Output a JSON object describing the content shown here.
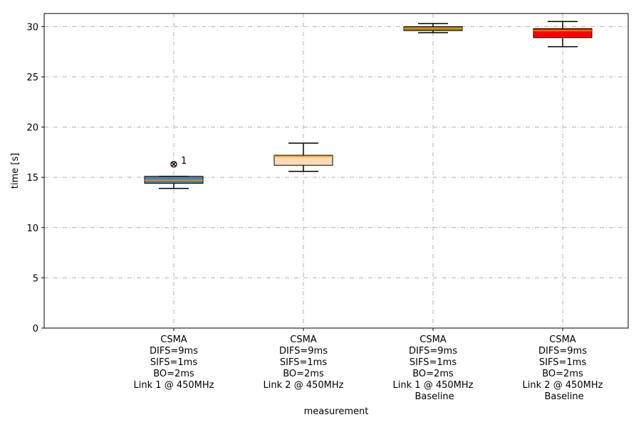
{
  "chart_data": {
    "type": "box",
    "xlabel": "measurement",
    "ylabel": "time [s]",
    "ylim": [
      0,
      31.3
    ],
    "yticks": [
      0,
      5,
      10,
      15,
      20,
      25,
      30
    ],
    "grid": true,
    "grid_style": "dash-dot",
    "categories": [
      [
        "CSMA",
        "DIFS=9ms",
        "SIFS=1ms",
        "BO=2ms",
        "Link 1 @ 450MHz"
      ],
      [
        "CSMA",
        "DIFS=9ms",
        "SIFS=1ms",
        "BO=2ms",
        "Link 2 @ 450MHz"
      ],
      [
        "CSMA",
        "DIFS=9ms",
        "SIFS=1ms",
        "BO=2ms",
        "Link 1 @ 450MHz",
        " Baseline"
      ],
      [
        "CSMA",
        "DIFS=9ms",
        "SIFS=1ms",
        "BO=2ms",
        "Link 2 @ 450MHz",
        " Baseline"
      ]
    ],
    "boxes": [
      {
        "whislo": 13.9,
        "q1": 14.4,
        "med": 14.7,
        "q3": 15.1,
        "whishi": 15.1,
        "fill": "#4682b4",
        "median_color": "#ff8c00",
        "fliers": [
          {
            "y": 16.3,
            "label": "1"
          }
        ]
      },
      {
        "whislo": 15.6,
        "q1": 16.2,
        "med": 17.1,
        "q3": 17.2,
        "whishi": 18.4,
        "fill": "#ffdab9",
        "median_color": "#ff8c00",
        "fliers": []
      },
      {
        "whislo": 29.4,
        "q1": 29.6,
        "med": 29.8,
        "q3": 30.0,
        "whishi": 30.3,
        "fill": "#6b8e23",
        "median_color": "#ff8c00",
        "fliers": []
      },
      {
        "whislo": 28.0,
        "q1": 28.9,
        "med": 29.6,
        "q3": 29.8,
        "whishi": 30.5,
        "fill": "#ff0000",
        "median_color": "#ff8c00",
        "fliers": []
      }
    ]
  }
}
